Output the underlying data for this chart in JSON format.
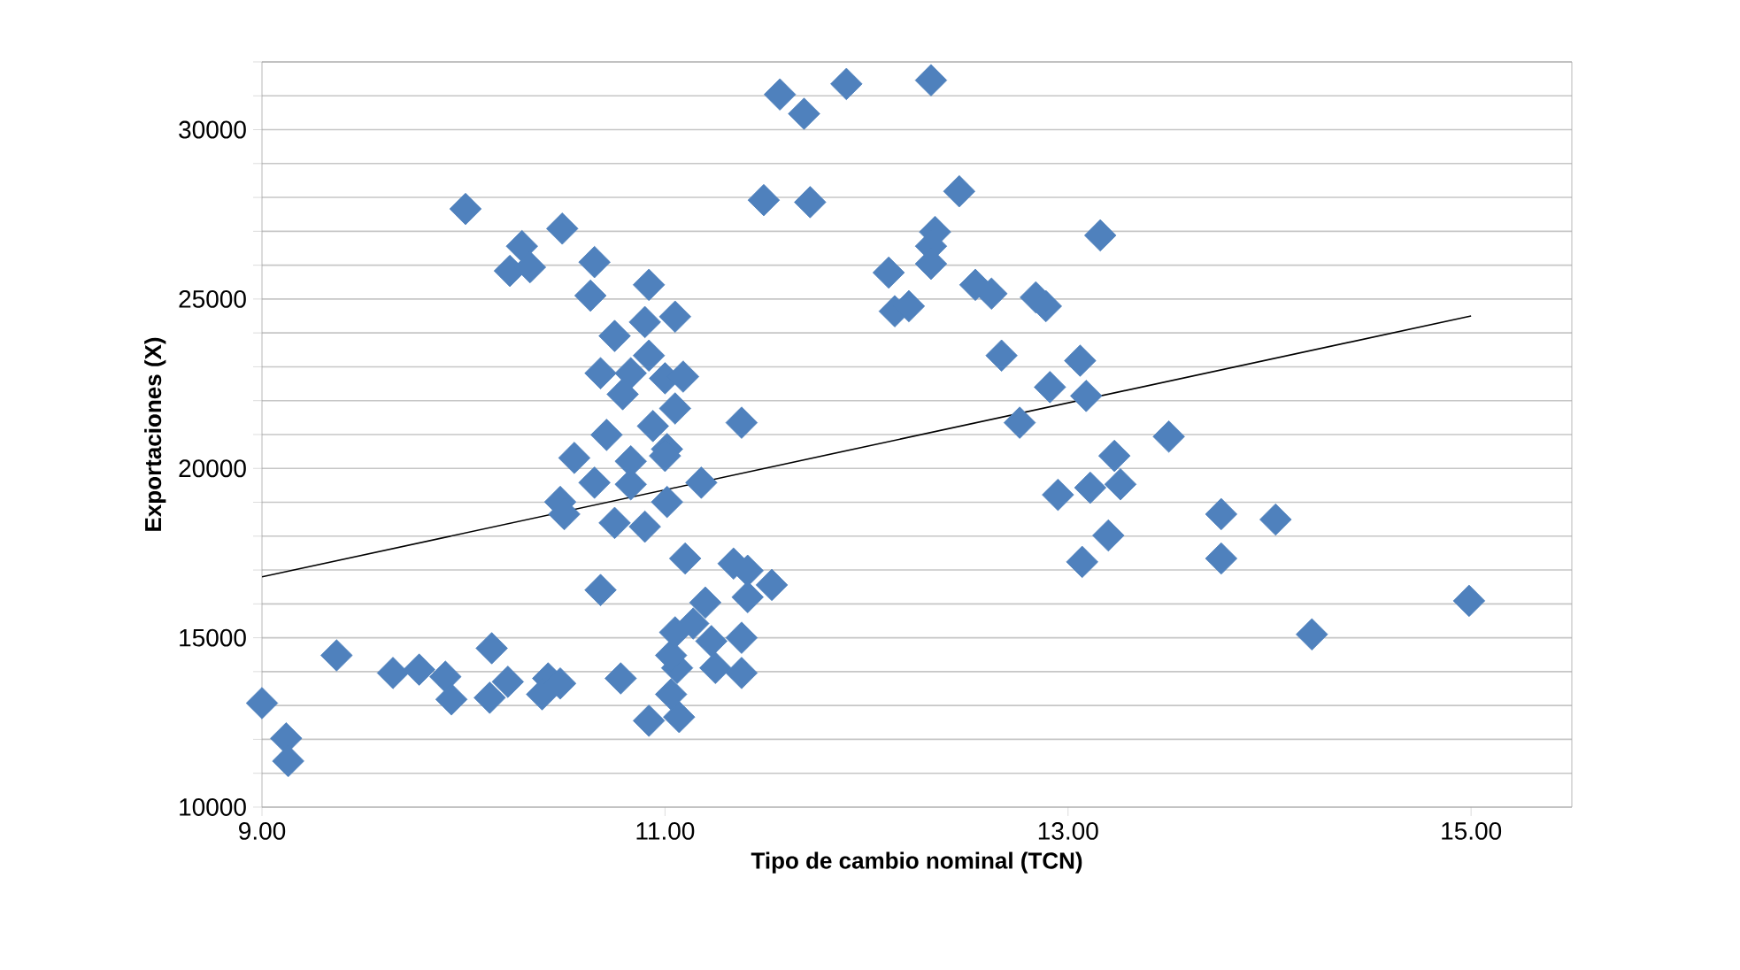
{
  "chart_data": {
    "type": "scatter",
    "xlabel": "Tipo de cambio nominal (TCN)",
    "ylabel": "Exportaciones (X)",
    "xlim": [
      9,
      15.5
    ],
    "ylim": [
      10000,
      32000
    ],
    "xticks": [
      {
        "value": 9,
        "label": "9.00"
      },
      {
        "value": 11,
        "label": "11.00"
      },
      {
        "value": 13,
        "label": "13.00"
      },
      {
        "value": 15,
        "label": "15.00"
      }
    ],
    "yticks": [
      10000,
      {
        "value": 11000,
        "label": null
      },
      {
        "value": 12000,
        "label": null
      },
      {
        "value": 13000,
        "label": null
      },
      {
        "value": 14000,
        "label": null
      },
      15000,
      {
        "value": 16000,
        "label": null
      },
      {
        "value": 17000,
        "label": null
      },
      {
        "value": 18000,
        "label": null
      },
      {
        "value": 19000,
        "label": null
      },
      20000,
      {
        "value": 21000,
        "label": null
      },
      {
        "value": 22000,
        "label": null
      },
      {
        "value": 23000,
        "label": null
      },
      {
        "value": 24000,
        "label": null
      },
      25000,
      {
        "value": 26000,
        "label": null
      },
      {
        "value": 27000,
        "label": null
      },
      {
        "value": 28000,
        "label": null
      },
      {
        "value": 29000,
        "label": null
      },
      30000,
      {
        "value": 31000,
        "label": null
      },
      {
        "value": 32000,
        "label": null
      }
    ],
    "grid": "y",
    "marker": "diamond",
    "series": [
      {
        "color": "#4f81bd",
        "x": [
          9.0,
          9.12,
          9.13,
          9.37,
          9.65,
          9.78,
          9.91,
          9.94,
          10.01,
          10.14,
          10.13,
          10.22,
          10.29,
          10.23,
          10.33,
          10.49,
          10.42,
          10.39,
          10.48,
          10.55,
          10.65,
          10.48,
          10.5,
          10.68,
          10.65,
          10.63,
          10.92,
          10.9,
          11.05,
          10.75,
          10.68,
          10.92,
          10.83,
          11.0,
          11.09,
          10.79,
          11.05,
          10.71,
          10.94,
          11.01,
          10.83,
          10.83,
          10.75,
          10.9,
          11.01,
          11.0,
          11.18,
          10.78,
          10.92,
          11.07,
          11.03,
          11.06,
          11.03,
          11.05,
          11.14,
          11.2,
          11.23,
          11.25,
          11.38,
          11.38,
          11.34,
          11.41,
          11.41,
          11.53,
          11.1,
          11.38,
          11.57,
          11.69,
          11.9,
          12.32,
          11.49,
          11.72,
          12.46,
          12.34,
          12.32,
          12.32,
          13.16,
          12.11,
          12.14,
          12.21,
          12.54,
          12.62,
          12.84,
          12.89,
          12.67,
          13.06,
          12.91,
          13.09,
          12.76,
          13.23,
          13.5,
          12.95,
          13.11,
          13.26,
          13.2,
          13.07,
          13.76,
          14.03,
          13.76,
          14.21,
          14.99
        ],
        "values": [
          13070,
          12030,
          11360,
          14480,
          13960,
          14060,
          13850,
          13180,
          27660,
          14690,
          13230,
          13700,
          26560,
          25830,
          25940,
          27080,
          13800,
          13330,
          13650,
          20310,
          19580,
          19010,
          18650,
          16410,
          26090,
          25100,
          25420,
          24320,
          24480,
          23910,
          22810,
          23330,
          22810,
          22660,
          22710,
          22190,
          21770,
          20990,
          21250,
          20570,
          20210,
          19530,
          18390,
          18280,
          19010,
          20370,
          19580,
          13800,
          12550,
          12660,
          13330,
          14110,
          14480,
          15160,
          15420,
          16040,
          14900,
          14110,
          15000,
          13960,
          17190,
          16980,
          16200,
          16560,
          17340,
          21350,
          31040,
          30470,
          31350,
          31460,
          27920,
          27860,
          28180,
          26980,
          26560,
          26040,
          26880,
          25780,
          24640,
          24790,
          25420,
          25160,
          25050,
          24790,
          23330,
          23180,
          22400,
          22140,
          21350,
          20370,
          20940,
          19220,
          19430,
          19530,
          18020,
          17240,
          18650,
          18490,
          17340,
          15100,
          16090
        ]
      },
      {
        "type": "line",
        "color": "#000000",
        "marker": "none",
        "x": [
          9,
          15
        ],
        "values": [
          16800,
          24500
        ]
      }
    ]
  }
}
